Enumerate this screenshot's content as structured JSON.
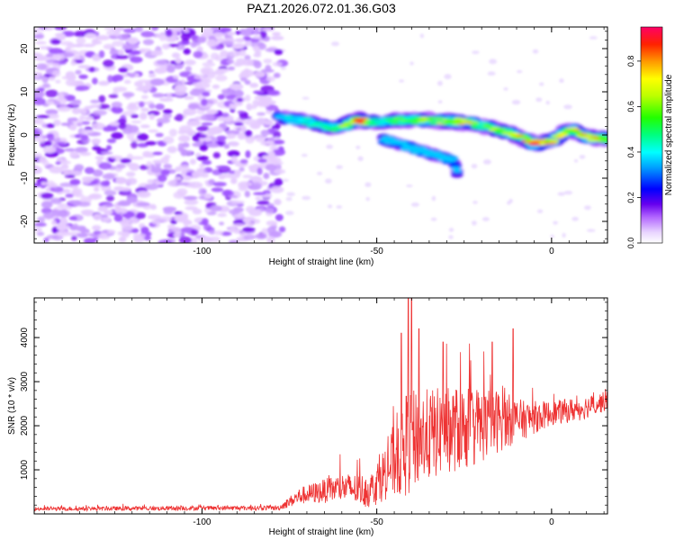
{
  "title": "PAZ1.2026.072.01.36.G03",
  "chart_data": [
    {
      "type": "heatmap",
      "title": "PAZ1.2026.072.01.36.G03",
      "xlabel": "Height of straight line (km)",
      "ylabel": "Frequency (Hz)",
      "xlim": [
        -148,
        16
      ],
      "ylim": [
        -25,
        25
      ],
      "x_ticks": [
        -100,
        -50,
        0
      ],
      "y_ticks": [
        -20,
        -10,
        0,
        10,
        20
      ],
      "colorbar": {
        "label": "Normalized spectral amplitude",
        "range": [
          0,
          0.95
        ],
        "ticks": [
          0.0,
          0.2,
          0.4,
          0.6,
          0.8
        ]
      },
      "noise_region": {
        "x_range": [
          -148,
          -77
        ],
        "freq_range": [
          -25,
          25
        ],
        "amplitude": 0.08
      },
      "signal_track": [
        {
          "x": -78,
          "freq": 4.0,
          "amp": 0.35
        },
        {
          "x": -70,
          "freq": 3.2,
          "amp": 0.45
        },
        {
          "x": -62,
          "freq": 1.5,
          "amp": 0.5
        },
        {
          "x": -55,
          "freq": 3.5,
          "amp": 0.9
        },
        {
          "x": -50,
          "freq": 3.0,
          "amp": 0.45
        },
        {
          "x": -44,
          "freq": 3.4,
          "amp": 0.6
        },
        {
          "x": -38,
          "freq": 3.5,
          "amp": 0.65
        },
        {
          "x": -30,
          "freq": 3.2,
          "amp": 0.7
        },
        {
          "x": -25,
          "freq": 3.0,
          "amp": 0.75
        },
        {
          "x": -20,
          "freq": 2.2,
          "amp": 0.6
        },
        {
          "x": -12,
          "freq": 0.5,
          "amp": 0.65
        },
        {
          "x": -5,
          "freq": -2.0,
          "amp": 0.9
        },
        {
          "x": 0,
          "freq": -1.5,
          "amp": 0.8
        },
        {
          "x": 5,
          "freq": 1.5,
          "amp": 0.7
        },
        {
          "x": 10,
          "freq": -0.5,
          "amp": 0.75
        },
        {
          "x": 16,
          "freq": -1.0,
          "amp": 0.7
        }
      ],
      "secondary_track": [
        {
          "x": -48,
          "freq": -1.0,
          "amp": 0.3
        },
        {
          "x": -40,
          "freq": -3.0,
          "amp": 0.3
        },
        {
          "x": -32,
          "freq": -5.0,
          "amp": 0.25
        },
        {
          "x": -28,
          "freq": -6.0,
          "amp": 0.25
        },
        {
          "x": -27,
          "freq": -9.0,
          "amp": 0.2
        }
      ]
    },
    {
      "type": "line",
      "title": "",
      "xlabel": "Height of straight line (km)",
      "ylabel": "SNR (10 * v/v)",
      "xlim": [
        -148,
        16
      ],
      "ylim": [
        0,
        4900
      ],
      "x_ticks": [
        -100,
        -50,
        0
      ],
      "y_ticks": [
        1000,
        2000,
        3000,
        4000
      ],
      "color": "#ee3333",
      "envelope": [
        {
          "x": -148,
          "base": 100,
          "spread": 80
        },
        {
          "x": -78,
          "base": 120,
          "spread": 100
        },
        {
          "x": -72,
          "base": 350,
          "spread": 350
        },
        {
          "x": -60,
          "base": 500,
          "spread": 600
        },
        {
          "x": -52,
          "base": 400,
          "spread": 700
        },
        {
          "x": -47,
          "base": 800,
          "spread": 1200
        },
        {
          "x": -42,
          "base": 1200,
          "spread": 2200
        },
        {
          "x": -38,
          "base": 1400,
          "spread": 2000
        },
        {
          "x": -30,
          "base": 1600,
          "spread": 1800
        },
        {
          "x": -22,
          "base": 1700,
          "spread": 1700
        },
        {
          "x": -15,
          "base": 1900,
          "spread": 1300
        },
        {
          "x": -8,
          "base": 2000,
          "spread": 800
        },
        {
          "x": 0,
          "base": 2200,
          "spread": 500
        },
        {
          "x": 8,
          "base": 2300,
          "spread": 500
        },
        {
          "x": 16,
          "base": 2500,
          "spread": 400
        }
      ],
      "peaks": [
        {
          "x": -43,
          "y": 4100
        },
        {
          "x": -41,
          "y": 4900
        },
        {
          "x": -40,
          "y": 4900
        },
        {
          "x": -38,
          "y": 4200
        },
        {
          "x": -31,
          "y": 3900
        },
        {
          "x": -17,
          "y": 3900
        },
        {
          "x": -11,
          "y": 4200
        }
      ],
      "summary": {
        "noise_level": 120,
        "max": 4900
      }
    }
  ]
}
